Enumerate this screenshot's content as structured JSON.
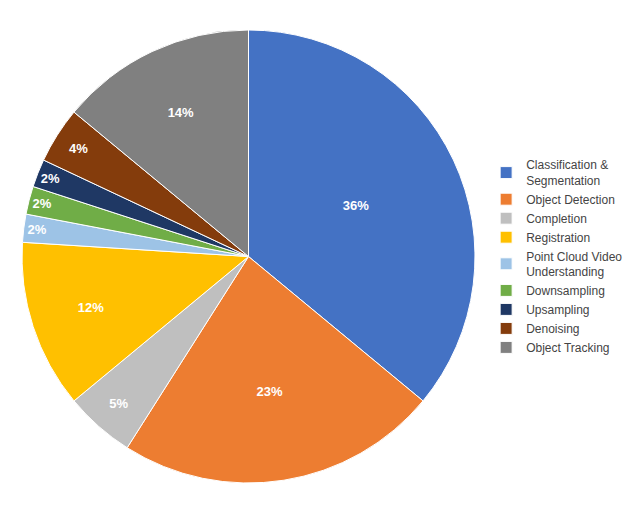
{
  "chart_data": {
    "type": "pie",
    "categories": [
      "Classification &\nSegmentation",
      "Object Detection",
      "Completion",
      "Registration",
      "Point Cloud Video\nUnderstanding",
      "Downsampling",
      "Upsampling",
      "Denoising",
      "Object Tracking"
    ],
    "values": [
      36,
      23,
      5,
      12,
      2,
      2,
      2,
      4,
      14
    ],
    "value_labels": [
      "36%",
      "23%",
      "5%",
      "12%",
      "2%",
      "2%",
      "2%",
      "4%",
      "14%"
    ],
    "colors": [
      "#4472C4",
      "#ED7D31",
      "#BFBFBF",
      "#FFC000",
      "#9DC3E6",
      "#70AD47",
      "#1F3864",
      "#843C0C",
      "#808080"
    ],
    "data_labels": true,
    "legend": "right"
  }
}
